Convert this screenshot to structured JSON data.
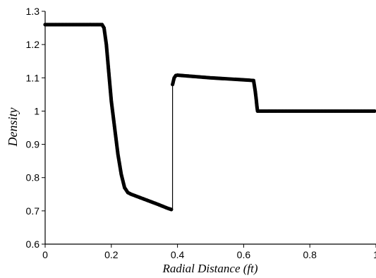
{
  "chart_data": {
    "type": "line",
    "title": "",
    "xlabel": "Radial Distance (ft)",
    "ylabel": "Density",
    "xlim": [
      0,
      1
    ],
    "ylim": [
      0.6,
      1.3
    ],
    "xticks": [
      0,
      0.2,
      0.4,
      0.6,
      0.8,
      1
    ],
    "xtick_labels": [
      "0",
      "0.2",
      "0.4",
      "0.6",
      "0.8",
      "1"
    ],
    "yticks": [
      0.6,
      0.7,
      0.8,
      0.9,
      1.0,
      1.1,
      1.2,
      1.3
    ],
    "ytick_labels": [
      "0.6",
      "0.7",
      "0.8",
      "0.9",
      "1",
      "1.1",
      "1.2",
      "1.3"
    ],
    "grid": false,
    "legend": "none",
    "colors": {
      "series": "#000000",
      "axis": "#000000"
    },
    "series": [
      {
        "x": [
          0,
          0.1,
          0.172,
          0.178,
          0.185,
          0.192,
          0.2,
          0.21,
          0.22,
          0.23,
          0.24,
          0.25,
          0.26,
          0.3,
          0.34,
          0.37,
          0.385,
          0.3851,
          0.39,
          0.395,
          0.4,
          0.45,
          0.5,
          0.55,
          0.6,
          0.63,
          0.635,
          0.638,
          0.64,
          0.642,
          0.7,
          0.8,
          0.9,
          1.0
        ],
        "y": [
          1.26,
          1.26,
          1.26,
          1.25,
          1.2,
          1.12,
          1.03,
          0.95,
          0.87,
          0.81,
          0.77,
          0.755,
          0.75,
          0.735,
          0.72,
          0.708,
          0.703,
          1.08,
          1.1,
          1.107,
          1.108,
          1.104,
          1.1,
          1.097,
          1.094,
          1.092,
          1.06,
          1.035,
          1.015,
          1.0,
          1.0,
          1.0,
          1.0,
          1.0
        ]
      }
    ]
  }
}
